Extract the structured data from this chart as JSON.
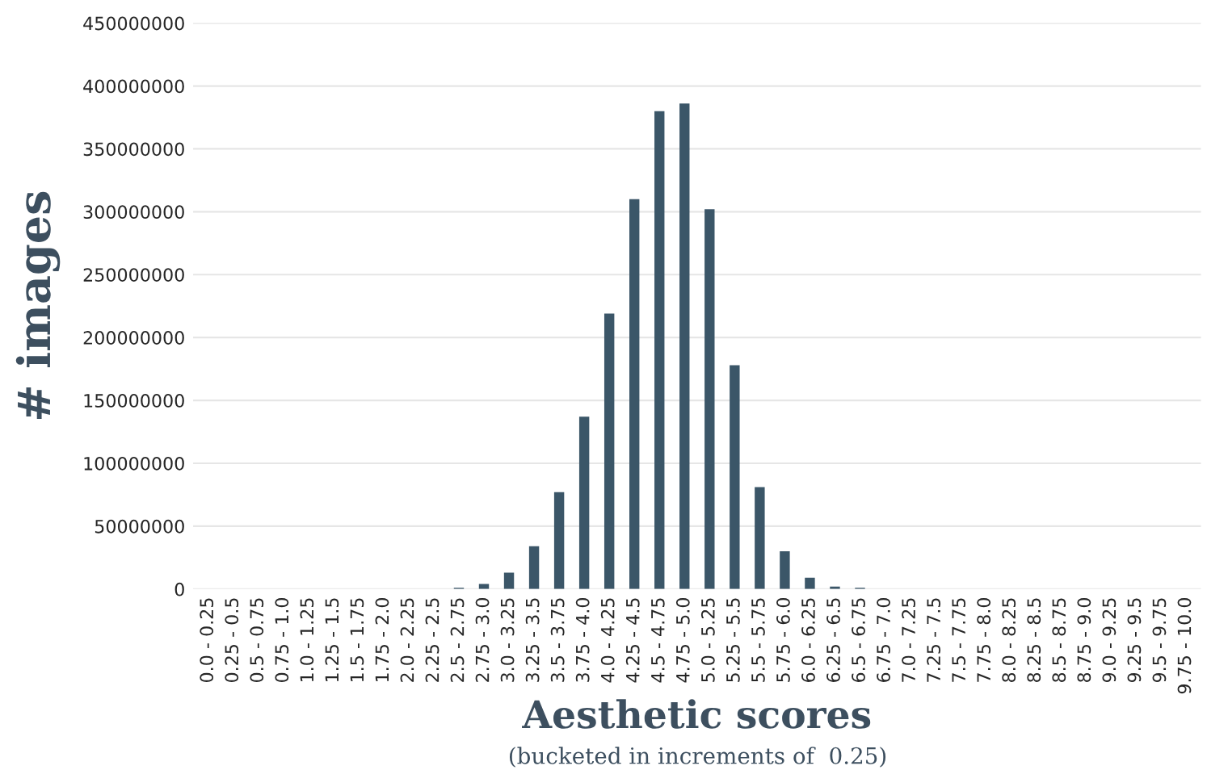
{
  "chart_data": {
    "type": "bar",
    "xlabel": "Aesthetic scores",
    "ylabel": "# images",
    "annotations": [
      "(bucketed in increments of  0.25)"
    ],
    "categories": [
      "0.0 - 0.25",
      "0.25 - 0.5",
      "0.5 - 0.75",
      "0.75 - 1.0",
      "1.0 - 1.25",
      "1.25 - 1.5",
      "1.5 - 1.75",
      "1.75 - 2.0",
      "2.0 - 2.25",
      "2.25 - 2.5",
      "2.5 - 2.75",
      "2.75 - 3.0",
      "3.0 - 3.25",
      "3.25 - 3.5",
      "3.5 - 3.75",
      "3.75 - 4.0",
      "4.0 - 4.25",
      "4.25 - 4.5",
      "4.5 - 4.75",
      "4.75 - 5.0",
      "5.0 - 5.25",
      "5.25 - 5.5",
      "5.5 - 5.75",
      "5.75 - 6.0",
      "6.0 - 6.25",
      "6.25 - 6.5",
      "6.5 - 6.75",
      "6.75 - 7.0",
      "7.0 - 7.25",
      "7.25 - 7.5",
      "7.5 - 7.75",
      "7.75 - 8.0",
      "8.0 - 8.25",
      "8.25 - 8.5",
      "8.5 - 8.75",
      "8.75 - 9.0",
      "9.0 - 9.25",
      "9.25 - 9.5",
      "9.5 - 9.75",
      "9.75 - 10.0"
    ],
    "values": [
      0,
      0,
      0,
      0,
      0,
      0,
      0,
      0,
      0,
      0,
      1000000,
      4000000,
      13000000,
      34000000,
      77000000,
      137000000,
      219000000,
      310000000,
      380000000,
      386000000,
      302000000,
      178000000,
      81000000,
      30000000,
      9000000,
      2000000,
      1000000,
      0,
      0,
      0,
      0,
      0,
      0,
      0,
      0,
      0,
      0,
      0,
      0,
      0
    ],
    "color": "#3b5668",
    "ylim": [
      0,
      450000000
    ],
    "yticks": [
      0,
      50000000,
      100000000,
      150000000,
      200000000,
      250000000,
      300000000,
      350000000,
      400000000,
      450000000
    ],
    "grid": "y"
  }
}
